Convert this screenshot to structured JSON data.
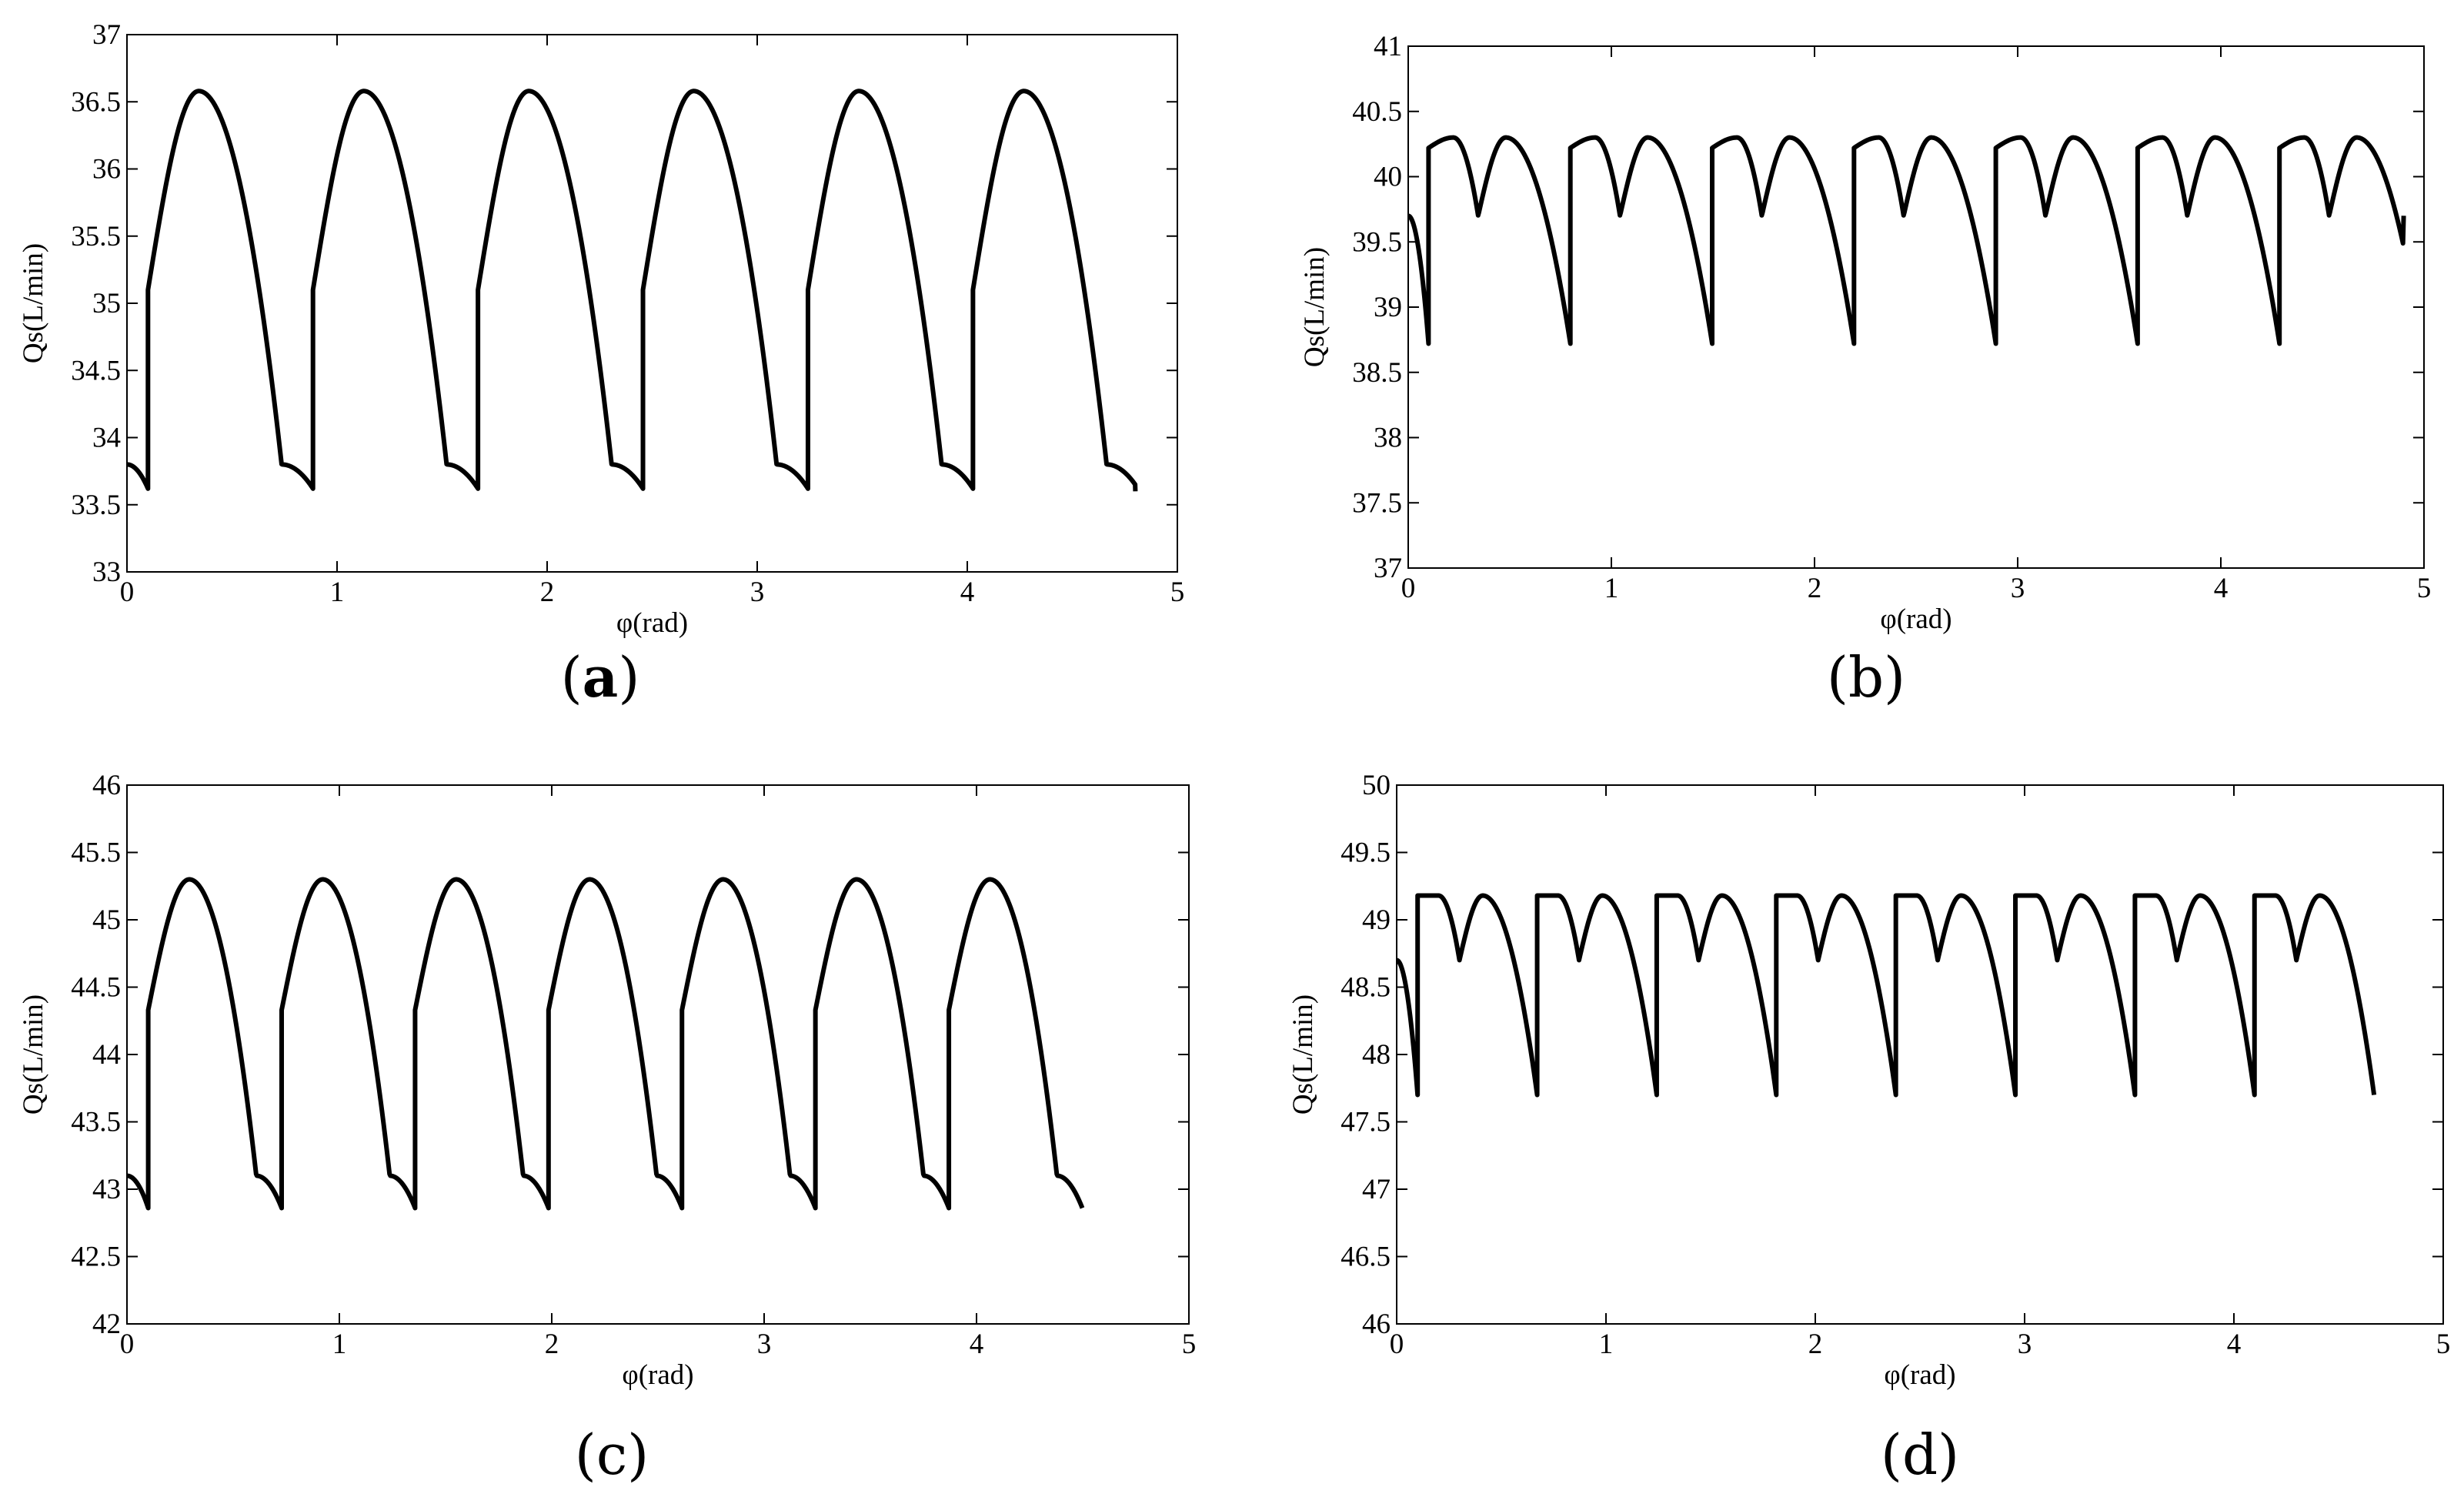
{
  "figure": {
    "panels": [
      {
        "label_open": "(",
        "label_letter": "a",
        "label_close": ")",
        "label_bold": true
      },
      {
        "label_open": "(",
        "label_letter": "b",
        "label_close": ")",
        "label_bold": false
      },
      {
        "label_open": "(",
        "label_letter": "c",
        "label_close": ")",
        "label_bold": false
      },
      {
        "label_open": "(",
        "label_letter": "d",
        "label_close": ")",
        "label_bold": false
      }
    ],
    "line_color": "#000000",
    "axis_color": "#000000"
  },
  "chart_data": [
    {
      "type": "line",
      "xlabel": "φ(rad)",
      "ylabel": "Qs(L/min)",
      "xlim": [
        0,
        5
      ],
      "ylim": [
        33,
        37
      ],
      "xticks": [
        0,
        1,
        2,
        3,
        4,
        5
      ],
      "yticks": [
        33,
        33.5,
        34,
        34.5,
        35,
        35.5,
        36,
        36.5,
        37
      ],
      "ytick_labels": [
        "33",
        "33.5",
        "34",
        "34.5",
        "35",
        "35.5",
        "36",
        "36.5",
        "37"
      ],
      "grid": false,
      "pattern": {
        "shape": "single-arch",
        "x_start": 0,
        "x_end": 4.8,
        "period": 0.7854,
        "n_periods": 6,
        "jump_offset": 0.1,
        "y_start": 33.8,
        "y_jump_low": 33.62,
        "y_jump_high": 35.1,
        "y_peak": 36.58,
        "y_knee": 33.8,
        "y_end": 33.6
      }
    },
    {
      "type": "line",
      "xlabel": "φ(rad)",
      "ylabel": "Qs(L/min)",
      "xlim": [
        0,
        5
      ],
      "ylim": [
        37,
        41
      ],
      "xticks": [
        0,
        1,
        2,
        3,
        4,
        5
      ],
      "yticks": [
        37,
        37.5,
        38,
        38.5,
        39,
        39.5,
        40,
        40.5,
        41
      ],
      "ytick_labels": [
        "37",
        "37.5",
        "38",
        "38.5",
        "39",
        "39.5",
        "40",
        "40.5",
        "41"
      ],
      "grid": false,
      "pattern": {
        "shape": "double-arch",
        "x_start": 0,
        "x_end": 4.9,
        "period": 0.6981,
        "n_periods": 7,
        "jump_offset": 0.1,
        "y_start": 39.7,
        "y_jump_low": 38.72,
        "y_jump_high": 40.22,
        "y_peak": 40.3,
        "y_mid_valley": 39.7,
        "y_end": 39.7
      }
    },
    {
      "type": "line",
      "xlabel": "φ(rad)",
      "ylabel": "Qs(L/min)",
      "xlim": [
        0,
        5
      ],
      "ylim": [
        42,
        46
      ],
      "xticks": [
        0,
        1,
        2,
        3,
        4,
        5
      ],
      "yticks": [
        42,
        42.5,
        43,
        43.5,
        44,
        44.5,
        45,
        45.5,
        46
      ],
      "ytick_labels": [
        "42",
        "42.5",
        "43",
        "43.5",
        "44",
        "44.5",
        "45",
        "45.5",
        "46"
      ],
      "grid": false,
      "pattern": {
        "shape": "single-arch",
        "x_start": 0,
        "x_end": 4.5,
        "period": 0.6283,
        "n_periods": 7,
        "jump_offset": 0.1,
        "y_start": 43.1,
        "y_jump_low": 42.86,
        "y_jump_high": 44.33,
        "y_peak": 45.3,
        "y_knee": 43.1,
        "y_end": 42.86
      }
    },
    {
      "type": "line",
      "xlabel": "φ(rad)",
      "ylabel": "Qs(L/min)",
      "xlim": [
        0,
        5
      ],
      "ylim": [
        46,
        50
      ],
      "xticks": [
        0,
        1,
        2,
        3,
        4,
        5
      ],
      "yticks": [
        46,
        46.5,
        47,
        47.5,
        48,
        48.5,
        49,
        49.5,
        50
      ],
      "ytick_labels": [
        "46",
        "46.5",
        "47",
        "47.5",
        "48",
        "48.5",
        "49",
        "49.5",
        "50"
      ],
      "grid": false,
      "pattern": {
        "shape": "double-arch",
        "x_start": 0,
        "x_end": 4.67,
        "period": 0.5712,
        "n_periods": 8,
        "jump_offset": 0.1,
        "y_start": 48.7,
        "y_jump_low": 47.7,
        "y_jump_high": 49.18,
        "y_peak": 49.18,
        "y_mid_valley": 48.7,
        "y_end": 47.72
      }
    }
  ]
}
